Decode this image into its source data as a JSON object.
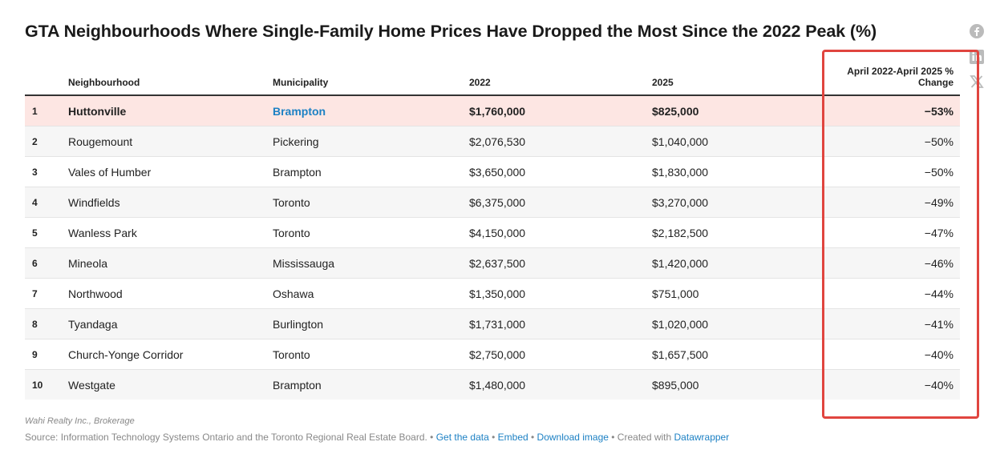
{
  "chart_data": {
    "type": "table",
    "title": "GTA Neighbourhoods Where Single-Family Home Prices Have Dropped the Most Since the 2022 Peak (%)",
    "columns": [
      "",
      "Neighbourhood",
      "Municipality",
      "2022",
      "2025",
      "April 2022-April 2025 % Change"
    ],
    "rows": [
      {
        "rank": "1",
        "neighbourhood": "Huttonville",
        "municipality": "Brampton",
        "y2022": "$1,760,000",
        "y2025": "$825,000",
        "change": "−53%"
      },
      {
        "rank": "2",
        "neighbourhood": "Rougemount",
        "municipality": "Pickering",
        "y2022": "$2,076,530",
        "y2025": "$1,040,000",
        "change": "−50%"
      },
      {
        "rank": "3",
        "neighbourhood": "Vales of Humber",
        "municipality": "Brampton",
        "y2022": "$3,650,000",
        "y2025": "$1,830,000",
        "change": "−50%"
      },
      {
        "rank": "4",
        "neighbourhood": "Windfields",
        "municipality": "Toronto",
        "y2022": "$6,375,000",
        "y2025": "$3,270,000",
        "change": "−49%"
      },
      {
        "rank": "5",
        "neighbourhood": "Wanless Park",
        "municipality": "Toronto",
        "y2022": "$4,150,000",
        "y2025": "$2,182,500",
        "change": "−47%"
      },
      {
        "rank": "6",
        "neighbourhood": "Mineola",
        "municipality": "Mississauga",
        "y2022": "$2,637,500",
        "y2025": "$1,420,000",
        "change": "−46%"
      },
      {
        "rank": "7",
        "neighbourhood": "Northwood",
        "municipality": "Oshawa",
        "y2022": "$1,350,000",
        "y2025": "$751,000",
        "change": "−44%"
      },
      {
        "rank": "8",
        "neighbourhood": "Tyandaga",
        "municipality": "Burlington",
        "y2022": "$1,731,000",
        "y2025": "$1,020,000",
        "change": "−41%"
      },
      {
        "rank": "9",
        "neighbourhood": "Church-Yonge Corridor",
        "municipality": "Toronto",
        "y2022": "$2,750,000",
        "y2025": "$1,657,500",
        "change": "−40%"
      },
      {
        "rank": "10",
        "neighbourhood": "Westgate",
        "municipality": "Brampton",
        "y2022": "$1,480,000",
        "y2025": "$895,000",
        "change": "−40%"
      }
    ],
    "highlighted_row": 1,
    "highlighted_column": "April 2022-April 2025 % Change"
  },
  "notes": "Wahi Realty Inc., Brokerage",
  "footer": {
    "source": "Source: Information Technology Systems Ontario and the Toronto Regional Real Estate Board. • ",
    "get_data": "Get the data",
    "sep1": " • ",
    "embed": "Embed",
    "sep2": " • ",
    "download": "Download image",
    "created": " • Created with ",
    "datawrapper": "Datawrapper"
  },
  "share_icons": [
    "facebook-icon",
    "linkedin-icon",
    "x-icon"
  ],
  "colors": {
    "highlight_row": "#fde6e3",
    "highlight_box": "#e0453f",
    "link": "#1d81c4"
  }
}
